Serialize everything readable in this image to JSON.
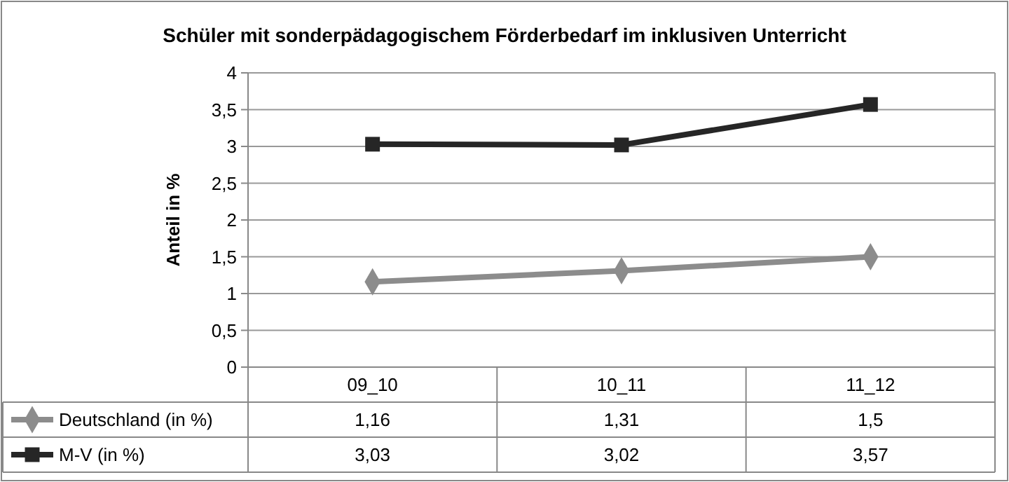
{
  "chart_data": {
    "type": "line",
    "title": "Schüler mit sonderpädagogischem Förderbedarf im inklusiven Unterricht",
    "ylabel": "Anteil in %",
    "categories": [
      "09_10",
      "10_11",
      "11_12"
    ],
    "series": [
      {
        "name": "Deutschland (in %)",
        "color": "#8c8c8c",
        "marker": "diamond",
        "values": [
          1.16,
          1.31,
          1.5
        ],
        "value_labels": [
          "1,16",
          "1,31",
          "1,5"
        ]
      },
      {
        "name": "M-V (in %)",
        "color": "#262626",
        "marker": "square",
        "values": [
          3.03,
          3.02,
          3.57
        ],
        "value_labels": [
          "3,03",
          "3,02",
          "3,57"
        ]
      }
    ],
    "ylim": [
      0,
      4
    ],
    "yticks": [
      0,
      {
        "value": 0.5,
        "label": "0,5"
      },
      1,
      {
        "value": 1.5,
        "label": "1,5"
      },
      2,
      {
        "value": 2.5,
        "label": "2,5"
      },
      3,
      {
        "value": 3.5,
        "label": "3,5"
      },
      4
    ],
    "grid": "y",
    "legend": "bottom left",
    "line_style": "solid"
  }
}
